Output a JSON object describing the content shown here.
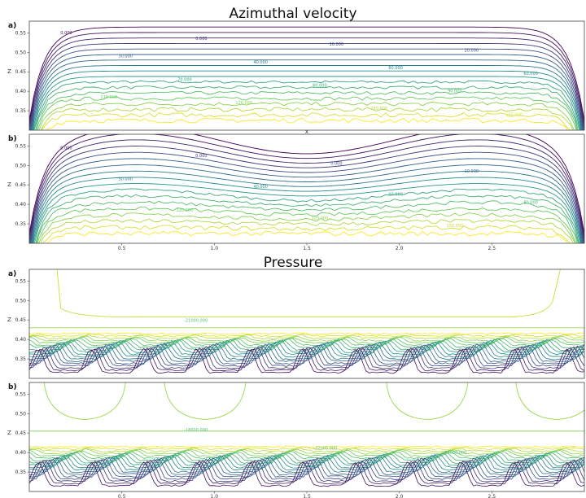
{
  "chart_data": [
    {
      "type": "contour",
      "title": "Azimuthal velocity",
      "panels": [
        {
          "label": "a)",
          "xlabel": "",
          "ylabel": "Z",
          "xlim": [
            0.0,
            3.0
          ],
          "ylim": [
            0.3,
            0.58
          ],
          "yticks": [
            "0.35",
            "0.40",
            "0.45",
            "0.50",
            "0.55"
          ],
          "xticks": [],
          "contour_levels": [
            0,
            10,
            20,
            30,
            40,
            50,
            60,
            70,
            80,
            90,
            100,
            110,
            120,
            130,
            140,
            150,
            160,
            170,
            180
          ],
          "contour_labels": [
            "0.000",
            "0.000",
            "10.000",
            "20.000",
            "30.000",
            "40.000",
            "60.000",
            "60.000",
            "70.000",
            "80.000",
            "90.000",
            "110.000",
            "120.000",
            "150.000",
            "160.000"
          ]
        },
        {
          "label": "b)",
          "xlabel": "x",
          "ylabel": "Z",
          "xlim": [
            0.0,
            3.0
          ],
          "ylim": [
            0.3,
            0.58
          ],
          "yticks": [
            "0.35",
            "0.40",
            "0.45",
            "0.50",
            "0.55"
          ],
          "xticks": [
            "0.5",
            "1.0",
            "1.5",
            "2.0",
            "2.5"
          ],
          "contour_levels": [
            0,
            10,
            20,
            30,
            40,
            50,
            60,
            70,
            80,
            90,
            100,
            110,
            120,
            130,
            140,
            150,
            160,
            170,
            180
          ],
          "contour_labels": [
            "0.000",
            "0.000",
            "0.000",
            "10.000",
            "30.000",
            "40.000",
            "60.000",
            "80.000",
            "120.000",
            "120.000",
            "150.000"
          ]
        }
      ]
    },
    {
      "type": "contour",
      "title": "Pressure",
      "panels": [
        {
          "label": "a)",
          "xlabel": "",
          "ylabel": "Z",
          "xlim": [
            0.0,
            3.0
          ],
          "ylim": [
            0.3,
            0.58
          ],
          "yticks": [
            "0.35",
            "0.40",
            "0.45",
            "0.50",
            "0.55"
          ],
          "xticks": [],
          "contour_labels": [
            "-21000.000"
          ]
        },
        {
          "label": "b)",
          "xlabel": "",
          "ylabel": "Z",
          "xlim": [
            0.0,
            3.0
          ],
          "ylim": [
            0.3,
            0.58
          ],
          "yticks": [
            "0.35",
            "0.40",
            "0.45",
            "0.50",
            "0.55"
          ],
          "xticks": [
            "0.5",
            "1.0",
            "1.5",
            "2.0",
            "2.5"
          ],
          "contour_labels": [
            "-18000.000",
            "-22000.000",
            "-24000.000"
          ]
        }
      ]
    }
  ],
  "colors": {
    "colormap": "viridis",
    "low": "#440154",
    "mid": "#21918c",
    "high": "#fde725"
  }
}
